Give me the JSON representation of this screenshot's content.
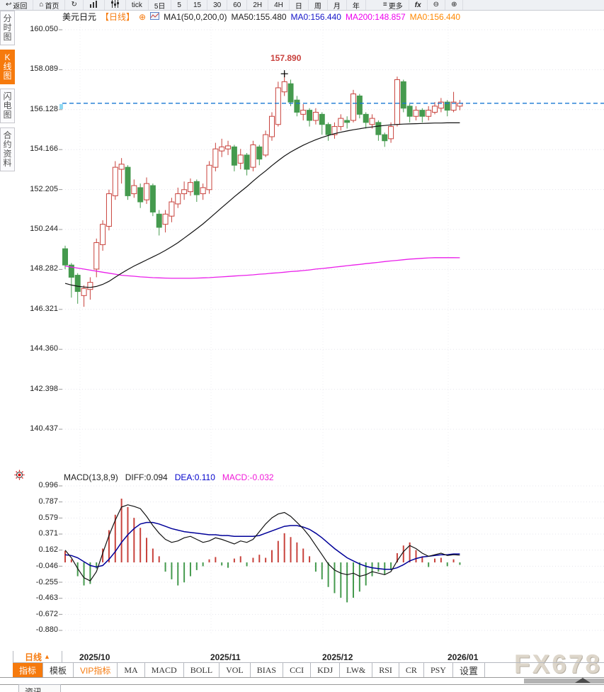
{
  "toolbar": {
    "items": [
      {
        "icon": "back",
        "glyph": "↩",
        "label": "返回"
      },
      {
        "icon": "home",
        "glyph": "⌂",
        "label": "首页"
      },
      {
        "icon": "refresh",
        "glyph": "↻",
        "label": ""
      },
      {
        "icon": "bar-chart",
        "label": ""
      },
      {
        "icon": "candles",
        "label": ""
      },
      {
        "label": "tick"
      },
      {
        "label": "5日"
      },
      {
        "label": "5"
      },
      {
        "label": "15"
      },
      {
        "label": "30"
      },
      {
        "label": "60"
      },
      {
        "label": "2H"
      },
      {
        "label": "4H"
      },
      {
        "label": "日"
      },
      {
        "label": "周"
      },
      {
        "label": "月"
      },
      {
        "label": "年"
      },
      {
        "icon": "menu",
        "glyph": "≡",
        "label": "更多"
      },
      {
        "icon": "fx",
        "label": "fx"
      },
      {
        "icon": "zoom-out",
        "glyph": "⊖",
        "label": ""
      },
      {
        "icon": "zoom-in",
        "glyph": "⊕",
        "label": ""
      }
    ]
  },
  "sidebar": {
    "items": [
      {
        "label": "分时图"
      },
      {
        "label": "K线图"
      },
      {
        "label": "闪电图"
      },
      {
        "label": "合约资料"
      }
    ],
    "active_item": "K线图",
    "news_tab": "资讯"
  },
  "chart_header": {
    "symbol": "美元日元",
    "period_tag": "【日线】",
    "add_glyph": "⊕",
    "ma_settings": "MA1(50,0,200,0)",
    "ma50": "MA50:155.480",
    "ma0_blue": "MA0:156.440",
    "ma200": "MA200:148.857",
    "ma0_orange": "MA0:156.440"
  },
  "price_axis": {
    "labels": [
      "160.050",
      "158.089",
      "156.128",
      "154.166",
      "152.205",
      "150.244",
      "148.282",
      "146.321",
      "144.360",
      "142.398",
      "140.437"
    ]
  },
  "annotation": {
    "text": "157.890"
  },
  "macd_header": {
    "title": "MACD(13,8,9)",
    "diff": "DIFF:0.094",
    "dea": "DEA:0.110",
    "macd": "MACD:-0.032"
  },
  "macd_axis": {
    "labels": [
      "0.996",
      "0.787",
      "0.579",
      "0.371",
      "0.162",
      "-0.046",
      "-0.255",
      "-0.463",
      "-0.672",
      "-0.880"
    ]
  },
  "x_axis": {
    "dates": [
      "2025/10",
      "2025/11",
      "2025/12",
      "2026/01"
    ]
  },
  "period_selector": {
    "label": "日线",
    "arrow": "▲"
  },
  "tabs": {
    "active": "指标",
    "items": [
      "指标",
      "模板",
      "VIP指标",
      "MA",
      "MACD",
      "BOLL",
      "VOL",
      "BIAS",
      "CCI",
      "KDJ",
      "LW&",
      "RSI",
      "CR",
      "PSY",
      "设置"
    ]
  },
  "watermark": "FX678",
  "chart_data": [
    {
      "type": "candlestick",
      "symbol": "美元日元",
      "period": "日线",
      "ylim": [
        140.437,
        160.05
      ],
      "y_ticks": [
        160.05,
        158.089,
        156.128,
        154.166,
        152.205,
        150.244,
        148.282,
        146.321,
        144.36,
        142.398,
        140.437
      ],
      "x_ticks": [
        "2025/10",
        "2025/11",
        "2025/12",
        "2026/01"
      ],
      "last_price": 156.44,
      "annotation": {
        "text": "157.890",
        "index": 35,
        "price": 157.89
      },
      "colors": {
        "up": "#c8423c",
        "down": "#459a4e",
        "ma50": "#111111",
        "ma200": "#ea1fea",
        "price_line": "#1777d3",
        "grid": "#e4e4ec",
        "tick": "#999999"
      },
      "candles": [
        [
          149.3,
          149.45,
          148.3,
          148.5
        ],
        [
          148.5,
          148.6,
          146.9,
          147.9
        ],
        [
          148.0,
          148.1,
          146.6,
          147.2
        ],
        [
          147.0,
          147.5,
          146.45,
          147.35
        ],
        [
          147.3,
          147.9,
          146.8,
          147.65
        ],
        [
          148.3,
          149.8,
          147.9,
          149.6
        ],
        [
          149.5,
          150.7,
          149.2,
          150.5
        ],
        [
          150.4,
          152.2,
          150.2,
          152.0
        ],
        [
          151.9,
          153.6,
          151.7,
          153.3
        ],
        [
          153.2,
          153.75,
          152.5,
          153.45
        ],
        [
          153.3,
          153.4,
          151.7,
          151.9
        ],
        [
          152.0,
          152.7,
          151.8,
          152.4
        ],
        [
          152.3,
          152.5,
          151.3,
          151.6
        ],
        [
          151.7,
          152.8,
          151.5,
          152.5
        ],
        [
          152.4,
          152.5,
          150.9,
          151.1
        ],
        [
          151.0,
          151.2,
          149.95,
          150.35
        ],
        [
          150.5,
          151.2,
          150.1,
          151.0
        ],
        [
          150.9,
          151.8,
          150.6,
          151.6
        ],
        [
          151.5,
          152.3,
          151.3,
          152.0
        ],
        [
          152.0,
          152.6,
          151.7,
          152.2
        ],
        [
          152.1,
          152.75,
          151.9,
          152.55
        ],
        [
          152.6,
          152.7,
          151.6,
          151.95
        ],
        [
          152.0,
          152.5,
          151.7,
          152.3
        ],
        [
          152.2,
          153.6,
          152.0,
          153.4
        ],
        [
          153.3,
          154.5,
          153.1,
          154.2
        ],
        [
          154.1,
          154.7,
          153.8,
          154.3
        ],
        [
          154.2,
          154.6,
          153.9,
          154.35
        ],
        [
          154.3,
          154.4,
          153.1,
          153.4
        ],
        [
          153.5,
          154.2,
          153.2,
          153.9
        ],
        [
          153.9,
          154.0,
          152.9,
          153.2
        ],
        [
          153.3,
          154.6,
          153.1,
          154.4
        ],
        [
          154.3,
          154.4,
          153.4,
          153.7
        ],
        [
          153.9,
          155.1,
          153.8,
          154.9
        ],
        [
          154.8,
          156.0,
          154.6,
          155.8
        ],
        [
          155.4,
          157.5,
          155.3,
          157.2
        ],
        [
          157.0,
          157.89,
          156.8,
          157.5
        ],
        [
          157.4,
          157.6,
          156.3,
          156.5
        ],
        [
          156.6,
          156.8,
          155.8,
          156.0
        ],
        [
          155.9,
          156.4,
          155.6,
          156.1
        ],
        [
          156.1,
          156.2,
          155.3,
          155.6
        ],
        [
          155.6,
          156.2,
          155.4,
          156.0
        ],
        [
          155.9,
          156.0,
          154.9,
          155.4
        ],
        [
          155.4,
          155.5,
          154.6,
          154.9
        ],
        [
          154.9,
          155.5,
          154.7,
          155.3
        ],
        [
          155.3,
          155.9,
          155.1,
          155.7
        ],
        [
          155.6,
          155.8,
          155.2,
          155.5
        ],
        [
          155.6,
          157.1,
          155.5,
          156.9
        ],
        [
          156.8,
          156.9,
          155.7,
          155.9
        ],
        [
          155.9,
          156.0,
          155.2,
          155.5
        ],
        [
          155.4,
          155.9,
          155.2,
          155.7
        ],
        [
          155.5,
          155.6,
          154.6,
          154.9
        ],
        [
          154.9,
          155.0,
          154.3,
          154.6
        ],
        [
          154.7,
          155.5,
          154.5,
          155.3
        ],
        [
          155.4,
          157.75,
          155.3,
          157.6
        ],
        [
          157.5,
          157.6,
          156.0,
          156.2
        ],
        [
          156.3,
          156.4,
          155.5,
          155.8
        ],
        [
          155.8,
          156.3,
          155.6,
          156.1
        ],
        [
          156.1,
          156.2,
          155.5,
          155.8
        ],
        [
          155.8,
          156.3,
          155.6,
          156.1
        ],
        [
          156.0,
          156.5,
          155.9,
          156.3
        ],
        [
          156.2,
          156.7,
          156.0,
          156.5
        ],
        [
          156.5,
          156.6,
          155.8,
          156.1
        ],
        [
          156.1,
          157.0,
          156.0,
          156.5
        ],
        [
          156.3,
          156.6,
          156.1,
          156.44
        ]
      ],
      "ma50": [
        147.6,
        147.52,
        147.46,
        147.42,
        147.4,
        147.45,
        147.55,
        147.7,
        147.9,
        148.1,
        148.28,
        148.45,
        148.6,
        148.75,
        148.9,
        149.05,
        149.22,
        149.4,
        149.6,
        149.82,
        150.05,
        150.28,
        150.52,
        150.78,
        151.05,
        151.32,
        151.58,
        151.85,
        152.1,
        152.35,
        152.62,
        152.88,
        153.12,
        153.38,
        153.62,
        153.85,
        154.05,
        154.22,
        154.38,
        154.52,
        154.65,
        154.76,
        154.86,
        154.95,
        155.02,
        155.08,
        155.14,
        155.19,
        155.24,
        155.28,
        155.32,
        155.35,
        155.38,
        155.4,
        155.42,
        155.43,
        155.44,
        155.45,
        155.46,
        155.47,
        155.47,
        155.48,
        155.48,
        155.48
      ],
      "ma200": [
        148.45,
        148.4,
        148.35,
        148.3,
        148.25,
        148.2,
        148.15,
        148.1,
        148.05,
        148.0,
        147.97,
        147.95,
        147.92,
        147.9,
        147.88,
        147.87,
        147.86,
        147.85,
        147.85,
        147.85,
        147.85,
        147.86,
        147.87,
        147.88,
        147.9,
        147.92,
        147.94,
        147.96,
        147.98,
        148.0,
        148.02,
        148.05,
        148.07,
        148.1,
        148.12,
        148.15,
        148.18,
        148.2,
        148.23,
        148.26,
        148.3,
        148.33,
        148.36,
        148.4,
        148.43,
        148.47,
        148.5,
        148.53,
        148.57,
        148.6,
        148.63,
        148.67,
        148.7,
        148.73,
        148.76,
        148.79,
        148.81,
        148.83,
        148.85,
        148.86,
        148.86,
        148.86,
        148.86,
        148.857
      ]
    },
    {
      "type": "macd",
      "params": "(13,8,9)",
      "diff_last": 0.094,
      "dea_last": 0.11,
      "macd_last": -0.032,
      "ylim": [
        -0.88,
        0.996
      ],
      "y_ticks": [
        0.996,
        0.787,
        0.579,
        0.371,
        0.162,
        -0.046,
        -0.255,
        -0.463,
        -0.672,
        -0.88
      ],
      "colors": {
        "diff": "#111111",
        "dea": "#000099",
        "hist_up": "#c8423c",
        "hist_down": "#459a4e"
      },
      "hist": [
        0.15,
        0.04,
        -0.18,
        -0.3,
        -0.28,
        -0.08,
        0.18,
        0.42,
        0.62,
        0.83,
        0.72,
        0.58,
        0.45,
        0.32,
        0.18,
        0.08,
        -0.12,
        -0.22,
        -0.3,
        -0.26,
        -0.18,
        -0.1,
        -0.05,
        0.04,
        0.07,
        -0.04,
        -0.07,
        0.05,
        0.08,
        -0.05,
        0.06,
        0.1,
        0.06,
        0.16,
        0.28,
        0.38,
        0.33,
        0.26,
        0.18,
        0.08,
        -0.12,
        -0.22,
        -0.32,
        -0.4,
        -0.46,
        -0.52,
        -0.46,
        -0.38,
        -0.3,
        -0.18,
        -0.12,
        -0.16,
        -0.1,
        0.12,
        0.22,
        0.26,
        0.16,
        0.08,
        -0.06,
        0.05,
        0.06,
        -0.05,
        0.04,
        -0.032
      ],
      "diff": [
        0.16,
        0.06,
        -0.08,
        -0.2,
        -0.24,
        -0.12,
        0.12,
        0.35,
        0.55,
        0.72,
        0.75,
        0.73,
        0.7,
        0.6,
        0.48,
        0.38,
        0.3,
        0.26,
        0.28,
        0.32,
        0.34,
        0.3,
        0.26,
        0.28,
        0.32,
        0.3,
        0.27,
        0.24,
        0.28,
        0.26,
        0.3,
        0.4,
        0.5,
        0.58,
        0.63,
        0.65,
        0.6,
        0.52,
        0.44,
        0.34,
        0.22,
        0.1,
        -0.02,
        -0.1,
        -0.14,
        -0.16,
        -0.14,
        -0.18,
        -0.16,
        -0.12,
        -0.14,
        -0.16,
        -0.12,
        0.02,
        0.14,
        0.22,
        0.18,
        0.12,
        0.08,
        0.1,
        0.12,
        0.09,
        0.1,
        0.094
      ],
      "dea": [
        0.1,
        0.09,
        0.06,
        0.01,
        -0.04,
        -0.06,
        -0.04,
        0.04,
        0.14,
        0.26,
        0.36,
        0.44,
        0.5,
        0.52,
        0.52,
        0.5,
        0.47,
        0.44,
        0.42,
        0.4,
        0.39,
        0.38,
        0.37,
        0.36,
        0.36,
        0.35,
        0.35,
        0.34,
        0.34,
        0.34,
        0.34,
        0.35,
        0.38,
        0.41,
        0.44,
        0.47,
        0.48,
        0.48,
        0.46,
        0.43,
        0.38,
        0.32,
        0.25,
        0.18,
        0.12,
        0.06,
        0.02,
        -0.02,
        -0.05,
        -0.07,
        -0.08,
        -0.09,
        -0.09,
        -0.07,
        -0.03,
        0.02,
        0.05,
        0.07,
        0.08,
        0.09,
        0.1,
        0.1,
        0.11,
        0.11
      ]
    }
  ]
}
